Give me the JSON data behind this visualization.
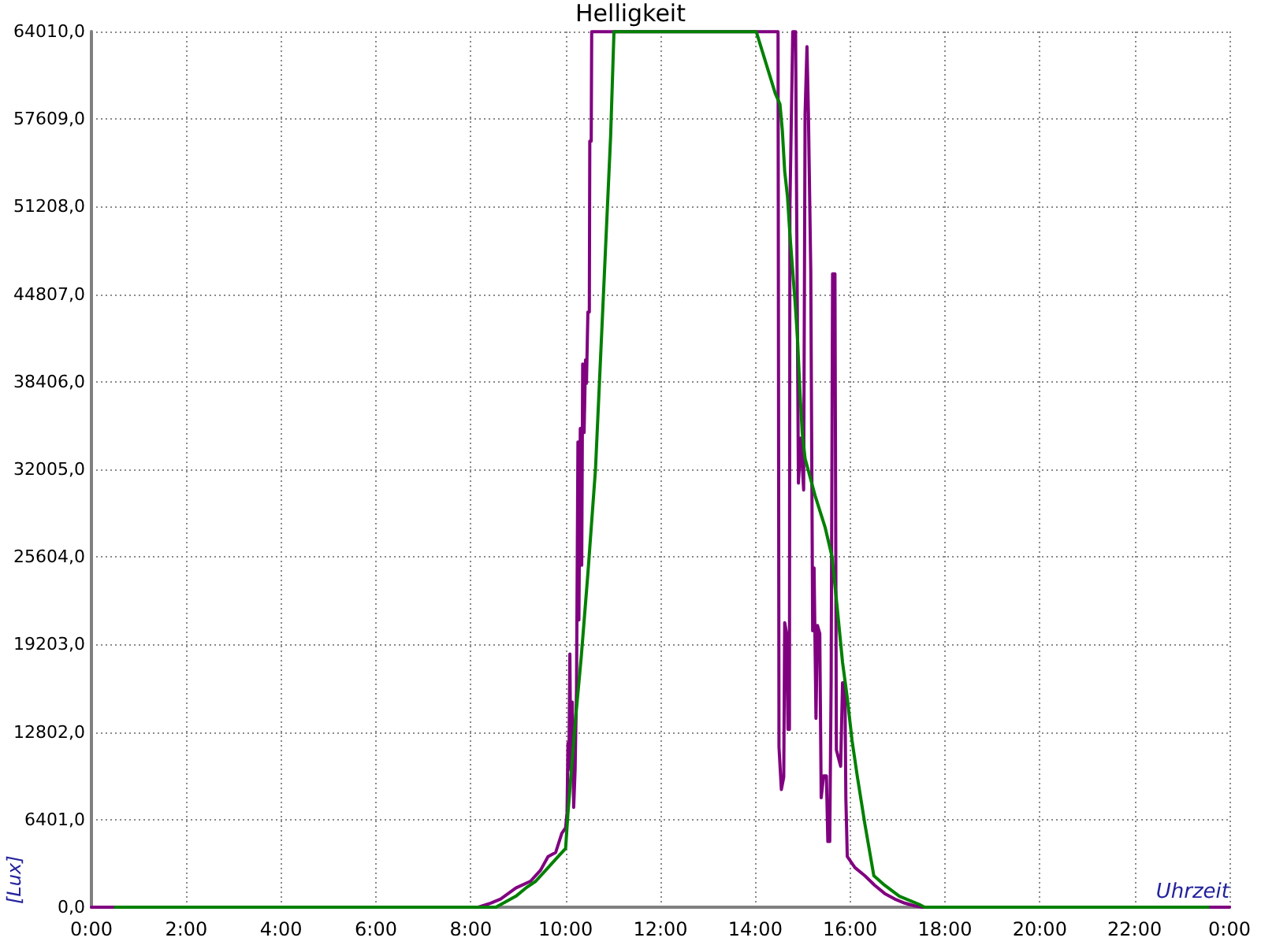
{
  "chart_data": {
    "type": "line",
    "title": "Helligkeit",
    "xlabel": "Uhrzeit",
    "ylabel": "[Lux]",
    "xlim": [
      0,
      24
    ],
    "ylim": [
      0,
      64010
    ],
    "xticks": [
      {
        "value": 0,
        "label": "0:00"
      },
      {
        "value": 2,
        "label": "2:00"
      },
      {
        "value": 4,
        "label": "4:00"
      },
      {
        "value": 6,
        "label": "6:00"
      },
      {
        "value": 8,
        "label": "8:00"
      },
      {
        "value": 10,
        "label": "10:00"
      },
      {
        "value": 12,
        "label": "12:00"
      },
      {
        "value": 14,
        "label": "14:00"
      },
      {
        "value": 16,
        "label": "16:00"
      },
      {
        "value": 18,
        "label": "18:00"
      },
      {
        "value": 20,
        "label": "20:00"
      },
      {
        "value": 22,
        "label": "22:00"
      },
      {
        "value": 24,
        "label": "0:00"
      }
    ],
    "yticks": [
      {
        "value": 0,
        "label": "0,0"
      },
      {
        "value": 6401,
        "label": "6401,0"
      },
      {
        "value": 12802,
        "label": "12802,0"
      },
      {
        "value": 19203,
        "label": "19203,0"
      },
      {
        "value": 25604,
        "label": "25604,0"
      },
      {
        "value": 32005,
        "label": "32005,0"
      },
      {
        "value": 38406,
        "label": "38406,0"
      },
      {
        "value": 44807,
        "label": "44807,0"
      },
      {
        "value": 51208,
        "label": "51208,0"
      },
      {
        "value": 57609,
        "label": "57609,0"
      },
      {
        "value": 64010,
        "label": "64010,0"
      }
    ],
    "grid": true,
    "marker": "none",
    "line_style": "solid",
    "series": [
      {
        "color": "#800080",
        "x": [
          0,
          8.16,
          8.42,
          8.63,
          8.95,
          9.26,
          9.47,
          9.63,
          9.79,
          9.92,
          10.0,
          10.03,
          10.05,
          10.07,
          10.09,
          10.11,
          10.14,
          10.17,
          10.2,
          10.23,
          10.26,
          10.28,
          10.31,
          10.34,
          10.36,
          10.39,
          10.42,
          10.44,
          10.47,
          10.5,
          10.51,
          10.54,
          10.55,
          14.48,
          14.5,
          14.55,
          14.6,
          14.62,
          14.66,
          14.69,
          14.72,
          14.73,
          14.79,
          14.85,
          14.87,
          14.91,
          14.96,
          15.02,
          15.05,
          15.09,
          15.12,
          15.14,
          15.17,
          15.21,
          15.24,
          15.28,
          15.31,
          15.36,
          15.39,
          15.44,
          15.5,
          15.53,
          15.57,
          15.6,
          15.63,
          15.68,
          15.71,
          15.8,
          15.84,
          15.89,
          15.91,
          15.94,
          16.1,
          16.31,
          16.52,
          16.73,
          16.94,
          17.15,
          17.36,
          17.52,
          24
        ],
        "values": [
          0,
          0,
          300,
          600,
          1400,
          1900,
          2700,
          3700,
          4000,
          5400,
          5800,
          6900,
          12000,
          10500,
          18500,
          10000,
          15000,
          7300,
          10000,
          16000,
          34000,
          21000,
          35000,
          25000,
          39700,
          34700,
          40000,
          38300,
          43500,
          43500,
          56000,
          56000,
          64000,
          64000,
          11700,
          8600,
          9500,
          20800,
          20000,
          13000,
          13000,
          51100,
          64000,
          64000,
          52400,
          31000,
          34300,
          30500,
          58000,
          62900,
          58100,
          58100,
          46500,
          20200,
          24800,
          13800,
          20600,
          20000,
          8000,
          9600,
          9600,
          4800,
          4800,
          16600,
          46300,
          46300,
          11500,
          10300,
          16400,
          16400,
          8000,
          3700,
          2900,
          2300,
          1600,
          1000,
          600,
          300,
          100,
          0,
          0
        ]
      },
      {
        "color": "#008000",
        "x": [
          0.5,
          8.53,
          8.74,
          8.95,
          9.16,
          9.37,
          9.58,
          9.79,
          10.0,
          10.05,
          10.21,
          10.33,
          10.47,
          10.63,
          10.84,
          10.95,
          11.02,
          14.02,
          14.42,
          14.52,
          14.57,
          14.62,
          14.68,
          14.73,
          14.78,
          14.84,
          14.89,
          14.94,
          14.99,
          15.05,
          15.26,
          15.47,
          15.62,
          15.73,
          15.84,
          15.94,
          16.04,
          16.15,
          16.31,
          16.5,
          16.73,
          17.04,
          17.46,
          17.57,
          23.55
        ],
        "values": [
          0,
          0,
          400,
          800,
          1400,
          1900,
          2700,
          3500,
          4300,
          6900,
          13800,
          18300,
          24400,
          32000,
          48000,
          56400,
          64000,
          64000,
          59500,
          58700,
          56800,
          53800,
          51900,
          49200,
          46900,
          44200,
          41600,
          37800,
          34700,
          32800,
          30100,
          27800,
          25600,
          21800,
          17900,
          15300,
          12200,
          9600,
          6100,
          2300,
          1600,
          800,
          200,
          0,
          0
        ]
      }
    ]
  }
}
